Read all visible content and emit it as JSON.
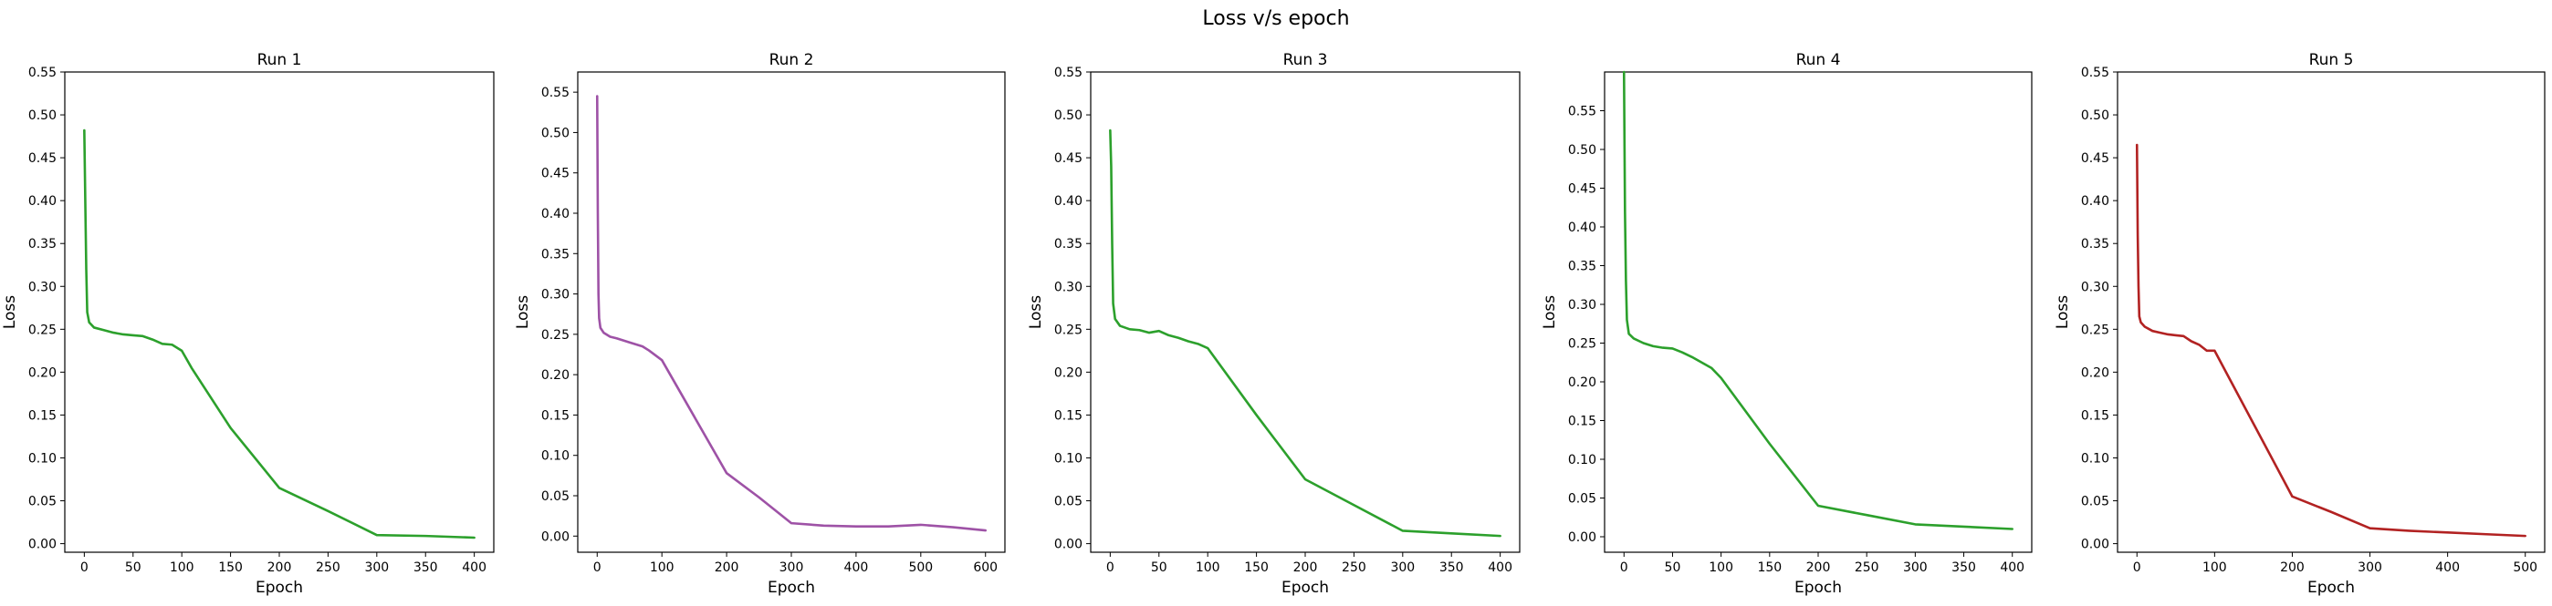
{
  "figure": {
    "suptitle": "Loss v/s epoch"
  },
  "chart_data": [
    {
      "type": "line",
      "title": "Run 1",
      "xlabel": "Epoch",
      "ylabel": "Loss",
      "xlim": [
        -20,
        420
      ],
      "ylim": [
        -0.01,
        0.55
      ],
      "xticks": [
        0,
        50,
        100,
        150,
        200,
        250,
        300,
        350,
        400
      ],
      "yticks": [
        0.0,
        0.05,
        0.1,
        0.15,
        0.2,
        0.25,
        0.3,
        0.35,
        0.4,
        0.45,
        0.5,
        0.55
      ],
      "color": "#2ca02c",
      "x": [
        0,
        1,
        2,
        3,
        5,
        10,
        20,
        30,
        40,
        50,
        60,
        70,
        80,
        90,
        100,
        110,
        150,
        200,
        250,
        300,
        350,
        400
      ],
      "y": [
        0.482,
        0.4,
        0.32,
        0.27,
        0.258,
        0.252,
        0.249,
        0.246,
        0.244,
        0.243,
        0.242,
        0.238,
        0.233,
        0.232,
        0.225,
        0.205,
        0.135,
        0.065,
        0.038,
        0.01,
        0.009,
        0.007
      ]
    },
    {
      "type": "line",
      "title": "Run 2",
      "xlabel": "Epoch",
      "ylabel": "Loss",
      "xlim": [
        -30,
        630
      ],
      "ylim": [
        -0.02,
        0.575
      ],
      "xticks": [
        0,
        100,
        200,
        300,
        400,
        500,
        600
      ],
      "yticks": [
        0.0,
        0.05,
        0.1,
        0.15,
        0.2,
        0.25,
        0.3,
        0.35,
        0.4,
        0.45,
        0.5,
        0.55
      ],
      "color": "#9e52a6",
      "x": [
        0,
        1,
        2,
        3,
        5,
        10,
        20,
        30,
        50,
        70,
        80,
        100,
        150,
        200,
        250,
        300,
        350,
        400,
        450,
        500,
        550,
        600
      ],
      "y": [
        0.545,
        0.4,
        0.3,
        0.27,
        0.258,
        0.252,
        0.247,
        0.245,
        0.24,
        0.235,
        0.23,
        0.218,
        0.148,
        0.078,
        0.048,
        0.016,
        0.013,
        0.012,
        0.012,
        0.014,
        0.011,
        0.007
      ]
    },
    {
      "type": "line",
      "title": "Run 3",
      "xlabel": "Epoch",
      "ylabel": "Loss",
      "xlim": [
        -20,
        420
      ],
      "ylim": [
        -0.01,
        0.55
      ],
      "xticks": [
        0,
        50,
        100,
        150,
        200,
        250,
        300,
        350,
        400
      ],
      "yticks": [
        0.0,
        0.05,
        0.1,
        0.15,
        0.2,
        0.25,
        0.3,
        0.35,
        0.4,
        0.45,
        0.5,
        0.55
      ],
      "color": "#2ca02c",
      "x": [
        0,
        1,
        2,
        3,
        5,
        10,
        20,
        30,
        40,
        50,
        60,
        70,
        80,
        90,
        100,
        150,
        200,
        250,
        300,
        350,
        400
      ],
      "y": [
        0.482,
        0.44,
        0.35,
        0.28,
        0.262,
        0.254,
        0.25,
        0.249,
        0.246,
        0.248,
        0.243,
        0.24,
        0.236,
        0.233,
        0.228,
        0.15,
        0.075,
        0.045,
        0.015,
        0.012,
        0.009
      ]
    },
    {
      "type": "line",
      "title": "Run 4",
      "xlabel": "Epoch",
      "ylabel": "Loss",
      "xlim": [
        -20,
        420
      ],
      "ylim": [
        -0.02,
        0.6
      ],
      "xticks": [
        0,
        50,
        100,
        150,
        200,
        250,
        300,
        350,
        400
      ],
      "yticks": [
        0.0,
        0.05,
        0.1,
        0.15,
        0.2,
        0.25,
        0.3,
        0.35,
        0.4,
        0.45,
        0.5,
        0.55
      ],
      "color": "#2ca02c",
      "x": [
        0,
        1,
        2,
        3,
        5,
        10,
        20,
        30,
        40,
        50,
        60,
        70,
        80,
        90,
        100,
        150,
        200,
        250,
        300,
        350,
        400
      ],
      "y": [
        0.6,
        0.42,
        0.33,
        0.28,
        0.262,
        0.256,
        0.25,
        0.246,
        0.244,
        0.243,
        0.238,
        0.232,
        0.225,
        0.218,
        0.205,
        0.12,
        0.04,
        0.028,
        0.016,
        0.013,
        0.01
      ]
    },
    {
      "type": "line",
      "title": "Run 5",
      "xlabel": "Epoch",
      "ylabel": "Loss",
      "xlim": [
        -25,
        525
      ],
      "ylim": [
        -0.01,
        0.55
      ],
      "xticks": [
        0,
        100,
        200,
        300,
        400,
        500
      ],
      "yticks": [
        0.0,
        0.05,
        0.1,
        0.15,
        0.2,
        0.25,
        0.3,
        0.35,
        0.4,
        0.45,
        0.5,
        0.55
      ],
      "color": "#b22222",
      "x": [
        0,
        1,
        2,
        3,
        5,
        10,
        20,
        30,
        40,
        50,
        60,
        70,
        80,
        90,
        100,
        150,
        200,
        250,
        300,
        350,
        400,
        450,
        500
      ],
      "y": [
        0.465,
        0.36,
        0.3,
        0.265,
        0.258,
        0.253,
        0.248,
        0.246,
        0.244,
        0.243,
        0.242,
        0.236,
        0.232,
        0.225,
        0.225,
        0.14,
        0.055,
        0.037,
        0.018,
        0.015,
        0.013,
        0.011,
        0.009
      ]
    }
  ]
}
